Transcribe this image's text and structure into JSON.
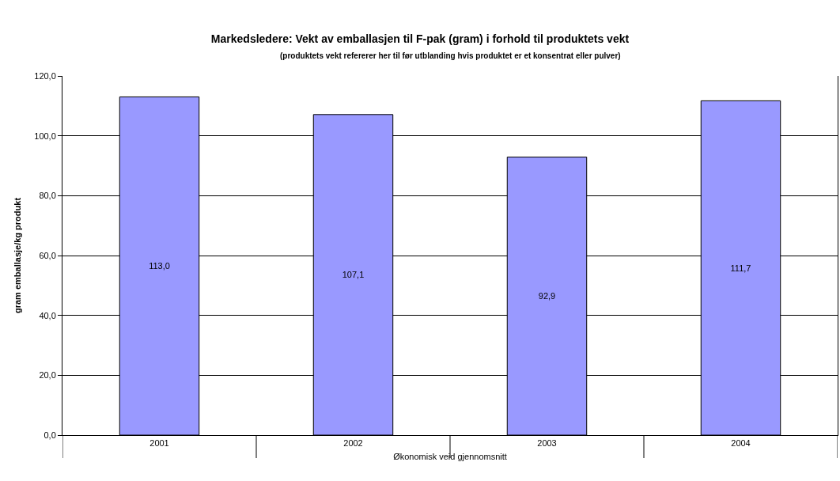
{
  "chart_data": {
    "type": "bar",
    "title": "Markedsledere: Vekt av emballasjen til F-pak (gram) i forhold til produktets vekt",
    "subtitle": "(produktets vekt refererer her til før utblanding hvis produktet er et konsentrat eller pulver)",
    "xlabel": "Økonomisk veid gjennomsnitt",
    "ylabel": "gram emballasje/kg produkt",
    "categories": [
      "2001",
      "2002",
      "2003",
      "2004"
    ],
    "values": [
      113.0,
      107.1,
      92.9,
      111.7
    ],
    "value_labels": [
      "113,0",
      "107,1",
      "92,9",
      "111,7"
    ],
    "color": "#9999ff",
    "ylim": [
      0,
      120
    ],
    "yticks": [
      {
        "value": 0,
        "label": "0,0"
      },
      {
        "value": 20,
        "label": "20,0"
      },
      {
        "value": 40,
        "label": "40,0"
      },
      {
        "value": 60,
        "label": "60,0"
      },
      {
        "value": 80,
        "label": "80,0"
      },
      {
        "value": 100,
        "label": "100,0"
      },
      {
        "value": 120,
        "label": "120,0"
      }
    ],
    "grid": "y"
  }
}
